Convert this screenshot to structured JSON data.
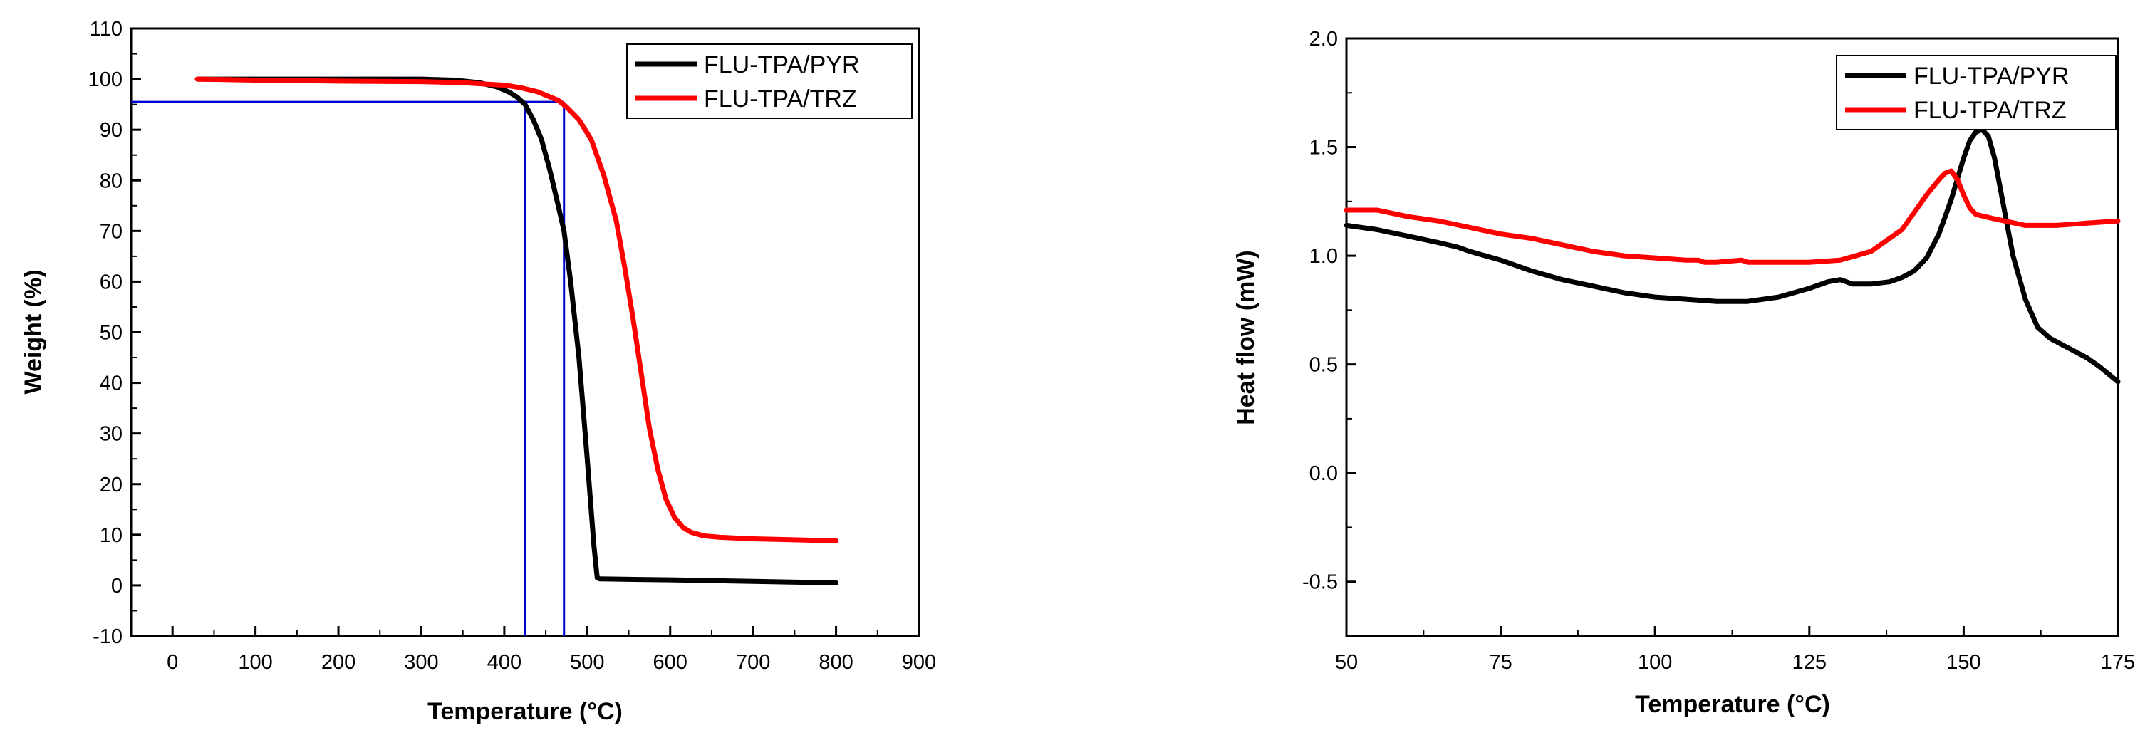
{
  "chart_data": [
    {
      "type": "line",
      "xlabel": "Temperature  (°C)",
      "ylabel": "Weight (%)",
      "xlim": [
        -50,
        900
      ],
      "ylim": [
        -10,
        110
      ],
      "xticks": [
        0,
        100,
        200,
        300,
        400,
        500,
        600,
        700,
        800,
        900
      ],
      "yticks": [
        -10,
        0,
        10,
        20,
        30,
        40,
        50,
        60,
        70,
        80,
        90,
        100,
        110
      ],
      "legend_position": "top-right",
      "grid": false,
      "series": [
        {
          "name": "FLU-TPA/PYR",
          "color": "#000000",
          "x": [
            30,
            100,
            200,
            300,
            340,
            370,
            390,
            405,
            415,
            425,
            435,
            445,
            455,
            465,
            472,
            480,
            490,
            500,
            508,
            512,
            515,
            550,
            600,
            700,
            800
          ],
          "y": [
            100,
            100,
            100,
            100,
            99.8,
            99.3,
            98.5,
            97.5,
            96.5,
            95,
            92,
            88,
            82,
            75,
            70,
            60,
            45,
            25,
            8,
            1.5,
            1.3,
            1.2,
            1.1,
            0.8,
            0.5
          ]
        },
        {
          "name": "FLU-TPA/TRZ",
          "color": "#ff0000",
          "x": [
            30,
            100,
            200,
            300,
            350,
            400,
            420,
            440,
            455,
            465,
            475,
            490,
            505,
            520,
            535,
            545,
            555,
            565,
            575,
            585,
            595,
            605,
            615,
            625,
            640,
            660,
            700,
            750,
            800
          ],
          "y": [
            100,
            99.8,
            99.6,
            99.5,
            99.3,
            98.8,
            98.3,
            97.5,
            96.5,
            95.8,
            94.5,
            92,
            88,
            81,
            72,
            63,
            53,
            42,
            31,
            23,
            17,
            13.5,
            11.5,
            10.5,
            9.8,
            9.5,
            9.2,
            9,
            8.8
          ]
        }
      ],
      "reference_lines": [
        {
          "from": [
            -50,
            95.5
          ],
          "to": [
            472,
            95.5
          ]
        },
        {
          "from": [
            425,
            -10
          ],
          "to": [
            425,
            95.5
          ]
        },
        {
          "from": [
            472,
            -10
          ],
          "to": [
            472,
            95.5
          ]
        }
      ],
      "reference_color": "#0000cc"
    },
    {
      "type": "line",
      "xlabel": "Temperature (°C)",
      "ylabel": "Heat flow (mW)",
      "xlim": [
        50,
        175
      ],
      "ylim": [
        -0.75,
        2.0
      ],
      "xticks": [
        50,
        75,
        100,
        125,
        150,
        175
      ],
      "yticks": [
        -0.5,
        0.0,
        0.5,
        1.0,
        1.5,
        2.0
      ],
      "ytick_labels": [
        "-0.5",
        "0.0",
        "0.5",
        "1.0",
        "1.5",
        "2.0"
      ],
      "legend_position": "top-right",
      "grid": false,
      "series": [
        {
          "name": "FLU-TPA/PYR",
          "color": "#000000",
          "x": [
            50,
            55,
            60,
            65,
            68,
            70,
            75,
            80,
            85,
            90,
            95,
            100,
            105,
            110,
            115,
            120,
            125,
            128,
            130,
            131,
            132,
            135,
            138,
            140,
            142,
            144,
            146,
            148,
            150,
            151,
            152,
            153,
            154,
            155,
            156,
            157,
            158,
            160,
            162,
            164,
            166,
            168,
            170,
            172,
            175
          ],
          "y": [
            1.14,
            1.12,
            1.09,
            1.06,
            1.04,
            1.02,
            0.98,
            0.93,
            0.89,
            0.86,
            0.83,
            0.81,
            0.8,
            0.79,
            0.79,
            0.81,
            0.85,
            0.88,
            0.89,
            0.88,
            0.87,
            0.87,
            0.88,
            0.9,
            0.93,
            0.99,
            1.1,
            1.26,
            1.45,
            1.53,
            1.57,
            1.58,
            1.55,
            1.45,
            1.3,
            1.15,
            1.0,
            0.8,
            0.67,
            0.62,
            0.59,
            0.56,
            0.53,
            0.49,
            0.42
          ]
        },
        {
          "name": "FLU-TPA/TRZ",
          "color": "#ff0000",
          "x": [
            50,
            55,
            60,
            65,
            70,
            75,
            80,
            85,
            90,
            95,
            100,
            105,
            107,
            108,
            110,
            114,
            115,
            120,
            125,
            130,
            135,
            140,
            142,
            144,
            146,
            147,
            148,
            149,
            150,
            151,
            152,
            155,
            160,
            165,
            170,
            175
          ],
          "y": [
            1.21,
            1.21,
            1.18,
            1.16,
            1.13,
            1.1,
            1.08,
            1.05,
            1.02,
            1.0,
            0.99,
            0.98,
            0.98,
            0.97,
            0.97,
            0.98,
            0.97,
            0.97,
            0.97,
            0.98,
            1.02,
            1.12,
            1.2,
            1.28,
            1.35,
            1.38,
            1.39,
            1.35,
            1.28,
            1.22,
            1.19,
            1.17,
            1.14,
            1.14,
            1.15,
            1.16
          ]
        }
      ]
    }
  ]
}
